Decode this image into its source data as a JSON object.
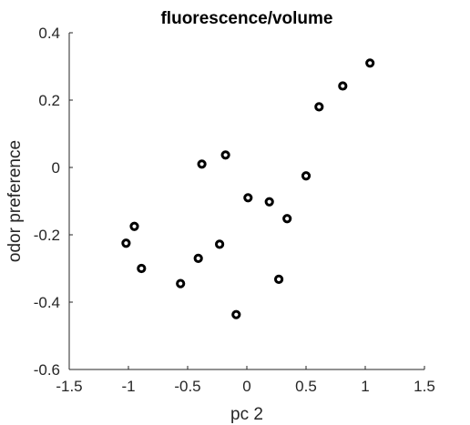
{
  "chart_data": {
    "type": "scatter",
    "title": "fluorescence/volume",
    "xlabel": "pc 2",
    "ylabel": "odor preference",
    "xlim": [
      -1.5,
      1.5
    ],
    "ylim": [
      -0.6,
      0.4
    ],
    "xticks": [
      -1.5,
      -1,
      -0.5,
      0,
      0.5,
      1,
      1.5
    ],
    "xtick_labels": [
      "-1.5",
      "-1",
      "-0.5",
      "0",
      "0.5",
      "1",
      "1.5"
    ],
    "yticks": [
      -0.6,
      -0.4,
      -0.2,
      0,
      0.2,
      0.4
    ],
    "ytick_labels": [
      "-0.6",
      "-0.4",
      "-0.2",
      "0",
      "0.2",
      "0.4"
    ],
    "grid": false,
    "marker": "open-circle",
    "marker_color": "#000000",
    "axis_color": "#262626",
    "points": [
      {
        "x": -1.02,
        "y": -0.225
      },
      {
        "x": -0.95,
        "y": -0.175
      },
      {
        "x": -0.89,
        "y": -0.3
      },
      {
        "x": -0.56,
        "y": -0.345
      },
      {
        "x": -0.41,
        "y": -0.27
      },
      {
        "x": -0.38,
        "y": 0.01
      },
      {
        "x": -0.23,
        "y": -0.228
      },
      {
        "x": -0.18,
        "y": 0.037
      },
      {
        "x": -0.09,
        "y": -0.437
      },
      {
        "x": 0.01,
        "y": -0.09
      },
      {
        "x": 0.19,
        "y": -0.102
      },
      {
        "x": 0.27,
        "y": -0.332
      },
      {
        "x": 0.34,
        "y": -0.152
      },
      {
        "x": 0.5,
        "y": -0.025
      },
      {
        "x": 0.61,
        "y": 0.18
      },
      {
        "x": 0.81,
        "y": 0.242
      },
      {
        "x": 1.04,
        "y": 0.31
      }
    ]
  }
}
